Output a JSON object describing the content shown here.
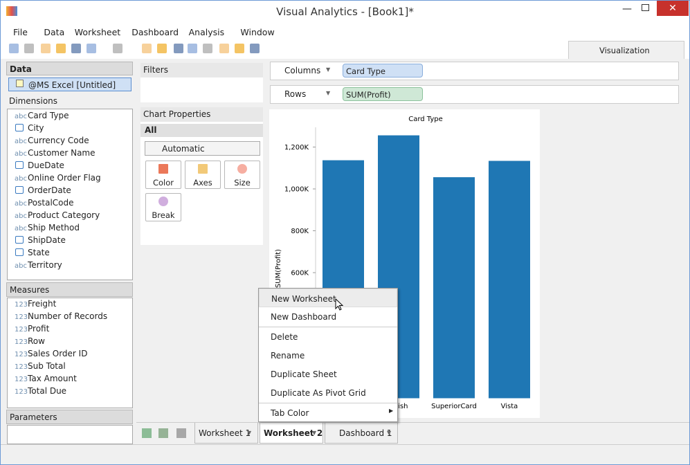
{
  "window": {
    "title": "Visual Analytics - [Book1]*"
  },
  "menu": [
    "File",
    "Data",
    "Worksheet",
    "Dashboard",
    "Analysis",
    "Window"
  ],
  "ribbon_tab": "Visualization",
  "data_panel": {
    "title": "Data",
    "source": "@MS Excel [Untitled]",
    "dimensions_title": "Dimensions",
    "dimension_prefixes": [
      "abc",
      null,
      "abc",
      "abc",
      null,
      "abc",
      null,
      "abc",
      "abc",
      "abc",
      null,
      null,
      "abc"
    ],
    "dimensions": [
      "Card Type",
      "City",
      "Currency Code",
      "Customer Name",
      "DueDate",
      "Online Order Flag",
      "OrderDate",
      "PostalCode",
      "Product Category",
      "Ship Method",
      "ShipDate",
      "State",
      "Territory"
    ],
    "measures_title": "Measures",
    "measure_prefix": "123",
    "measures": [
      "Freight",
      "Number of Records",
      "Profit",
      "Row",
      "Sales Order ID",
      "Sub Total",
      "Tax Amount",
      "Total Due"
    ],
    "parameters_title": "Parameters"
  },
  "filters": {
    "title": "Filters"
  },
  "chart_properties": {
    "title": "Chart Properties",
    "scope": "All",
    "mark_type": "Automatic",
    "buttons": [
      "Color",
      "Axes",
      "Size",
      "Break"
    ]
  },
  "shelves": {
    "columns": {
      "label": "Columns",
      "pill": "Card Type"
    },
    "rows": {
      "label": "Rows",
      "pill": "SUM(Profit)"
    }
  },
  "chart_data": {
    "type": "bar",
    "title": "Card Type",
    "y_label": "SUM(Profit)",
    "categories": [
      null,
      "guish",
      "SuperiorCard",
      "Vista"
    ],
    "values": [
      1137000,
      1256000,
      1056000,
      1134000
    ],
    "color": "#1f77b4",
    "ylim": [
      0,
      1290000
    ],
    "yticks": [
      {
        "value": 600000,
        "label": "600K"
      },
      {
        "value": 800000,
        "label": "800K"
      },
      {
        "value": 1000000,
        "label": "1,000K"
      },
      {
        "value": 1200000,
        "label": "1,200K"
      }
    ]
  },
  "context_menu": {
    "groups": [
      [
        "New Worksheet",
        "New Dashboard"
      ],
      [
        "Delete",
        "Rename",
        "Duplicate Sheet",
        "Duplicate As Pivot Grid"
      ],
      [
        "Tab Color"
      ]
    ]
  },
  "sheet_tabs": {
    "tabs": [
      "Worksheet 1",
      "Worksheet 2",
      "Dashboard 1"
    ],
    "active": 1
  }
}
